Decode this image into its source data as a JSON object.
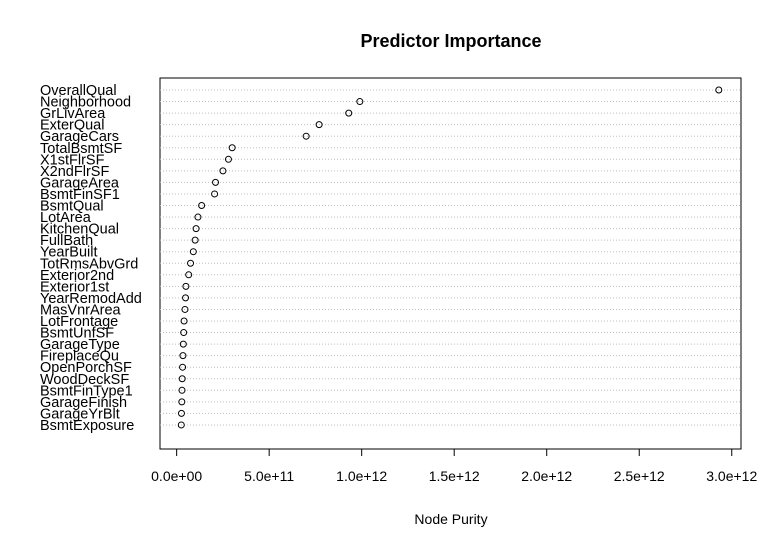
{
  "chart_data": {
    "type": "scatter",
    "title": "Predictor Importance",
    "xlabel": "Node Purity",
    "ylabel": "",
    "xlim": [
      -90000000000.0,
      3050000000000.0
    ],
    "xticks": [
      0,
      500000000000.0,
      1000000000000.0,
      1500000000000.0,
      2000000000000.0,
      2500000000000.0,
      3000000000000.0
    ],
    "xtick_labels": [
      "0.0e+00",
      "5.0e+11",
      "1.0e+12",
      "1.5e+12",
      "2.0e+12",
      "2.5e+12",
      "3.0e+12"
    ],
    "grid": "dotted horizontal",
    "point_color": "#000000",
    "grid_color": "#bebebe",
    "categories": [
      "OverallQual",
      "Neighborhood",
      "GrLivArea",
      "ExterQual",
      "GarageCars",
      "TotalBsmtSF",
      "X1stFlrSF",
      "X2ndFlrSF",
      "GarageArea",
      "BsmtFinSF1",
      "BsmtQual",
      "LotArea",
      "KitchenQual",
      "FullBath",
      "YearBuilt",
      "TotRmsAbvGrd",
      "Exterior2nd",
      "Exterior1st",
      "YearRemodAdd",
      "MasVnrArea",
      "LotFrontage",
      "BsmtUnfSF",
      "GarageType",
      "FireplaceQu",
      "OpenPorchSF",
      "WoodDeckSF",
      "BsmtFinType1",
      "GarageFinish",
      "GarageYrBlt",
      "BsmtExposure"
    ],
    "values": [
      2930000000000.0,
      990000000000.0,
      930000000000.0,
      770000000000.0,
      700000000000.0,
      300000000000.0,
      280000000000.0,
      250000000000.0,
      210000000000.0,
      205000000000.0,
      135000000000.0,
      115000000000.0,
      105000000000.0,
      100000000000.0,
      90000000000.0,
      75000000000.0,
      65000000000.0,
      50000000000.0,
      48000000000.0,
      45000000000.0,
      40000000000.0,
      38000000000.0,
      36000000000.0,
      34000000000.0,
      32000000000.0,
      30000000000.0,
      29000000000.0,
      28000000000.0,
      26000000000.0,
      25000000000.0
    ]
  }
}
